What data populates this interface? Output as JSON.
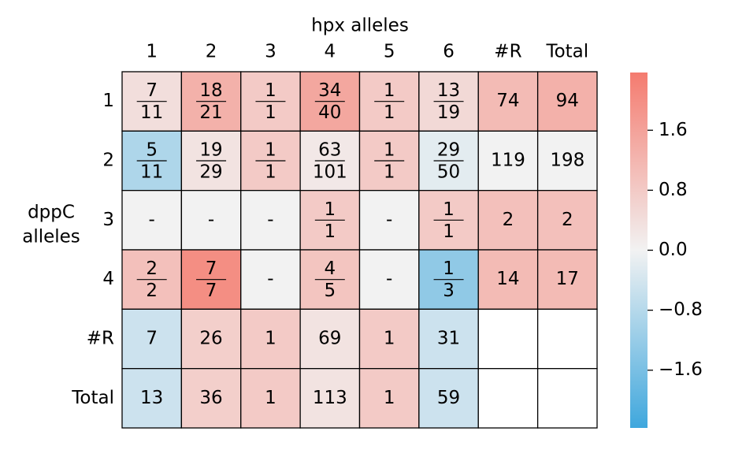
{
  "chart_data": {
    "type": "heatmap",
    "title": "hpx alleles",
    "y_label": [
      "dppC",
      "alleles"
    ],
    "columns": [
      "1",
      "2",
      "3",
      "4",
      "5",
      "6",
      "#R",
      "Total"
    ],
    "rows": [
      "1",
      "2",
      "3",
      "4",
      "#R",
      "Total"
    ],
    "values": [
      [
        0.4,
        1.3,
        0.8,
        1.5,
        0.8,
        0.5,
        1.1,
        1.3
      ],
      [
        -0.9,
        0.3,
        0.8,
        0.2,
        0.8,
        -0.2,
        0.0,
        0.0
      ],
      [
        0.0,
        0.0,
        0.0,
        0.8,
        0.0,
        0.8,
        1.0,
        1.0
      ],
      [
        1.0,
        2.0,
        0.0,
        0.9,
        0.0,
        -1.3,
        1.1,
        1.1
      ],
      [
        -0.5,
        0.7,
        0.8,
        0.3,
        0.8,
        -0.5,
        null,
        null
      ],
      [
        -0.5,
        0.7,
        0.8,
        0.3,
        0.8,
        -0.5,
        null,
        null
      ]
    ],
    "cell_labels": [
      [
        {
          "numerator": 7,
          "denominator": 11
        },
        {
          "numerator": 18,
          "denominator": 21
        },
        {
          "numerator": 1,
          "denominator": 1
        },
        {
          "numerator": 34,
          "denominator": 40
        },
        {
          "numerator": 1,
          "denominator": 1
        },
        {
          "numerator": 13,
          "denominator": 19
        },
        74,
        94
      ],
      [
        {
          "numerator": 5,
          "denominator": 11
        },
        {
          "numerator": 19,
          "denominator": 29
        },
        {
          "numerator": 1,
          "denominator": 1
        },
        {
          "numerator": 63,
          "denominator": 101
        },
        {
          "numerator": 1,
          "denominator": 1
        },
        {
          "numerator": 29,
          "denominator": 50
        },
        119,
        198
      ],
      [
        "-",
        "-",
        "-",
        {
          "numerator": 1,
          "denominator": 1
        },
        "-",
        {
          "numerator": 1,
          "denominator": 1
        },
        2,
        2
      ],
      [
        {
          "numerator": 2,
          "denominator": 2
        },
        {
          "numerator": 7,
          "denominator": 7
        },
        "-",
        {
          "numerator": 4,
          "denominator": 5
        },
        "-",
        {
          "numerator": 1,
          "denominator": 3
        },
        14,
        17
      ],
      [
        7,
        26,
        1,
        69,
        1,
        31,
        null,
        null
      ],
      [
        13,
        36,
        1,
        113,
        1,
        59,
        null,
        null
      ]
    ],
    "colors": {
      "negative": "#3fa7dd",
      "center": "#f2f2f2",
      "positive": "#f47b6f",
      "empty": "#ffffff"
    },
    "vlim": [
      -2.37,
      2.37
    ],
    "colorbar_ticks": [
      {
        "value": 1.6,
        "label": "1.6"
      },
      0.8,
      {
        "value": 0,
        "label": "0.0"
      },
      {
        "value": -0.8,
        "label": "−0.8"
      },
      {
        "value": -1.6,
        "label": "−1.6"
      }
    ]
  }
}
